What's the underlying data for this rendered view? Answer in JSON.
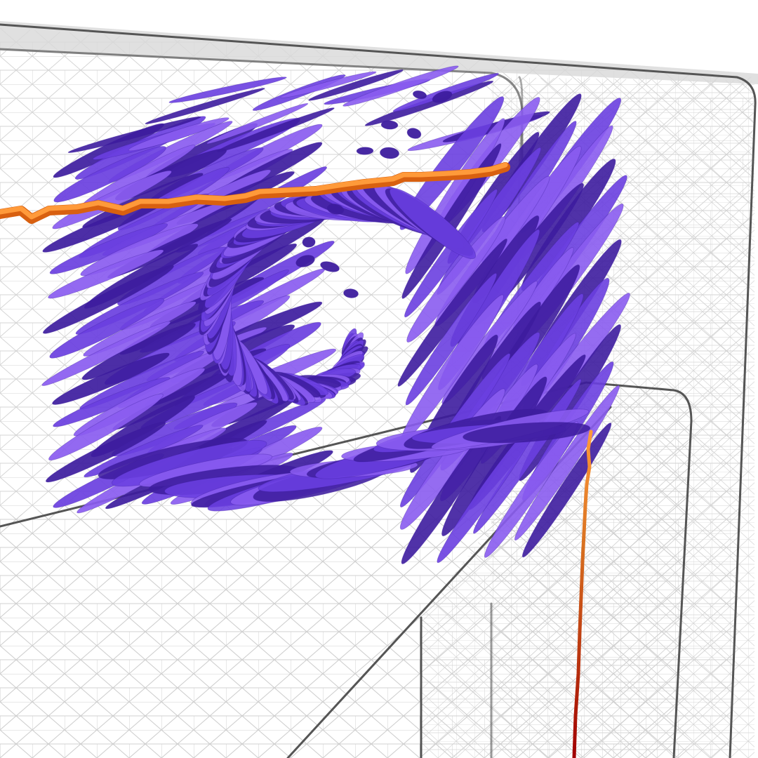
{
  "scene": {
    "kind": "3d-render",
    "palette": {
      "background": "#ffffff",
      "mesh": "#cfcfcf",
      "outline": "#555555",
      "glyph_light": "#8a5cf0",
      "glyph_mid": "#6a3fe0",
      "glyph_dark": "#3d1c9e",
      "curve_orange": "#ff8a2a",
      "curve_dark": "#e06010",
      "curve_red": "#a80000"
    },
    "objects": [
      {
        "name": "wireframe-mesh",
        "type": "triangulated mesh"
      },
      {
        "name": "ellipsoid-glyph-field",
        "type": "purple ellipsoid glyphs"
      },
      {
        "name": "horizontal-tube-curve",
        "type": "orange tube"
      },
      {
        "name": "vertical-tube-curve",
        "type": "orange-to-red line"
      }
    ]
  }
}
